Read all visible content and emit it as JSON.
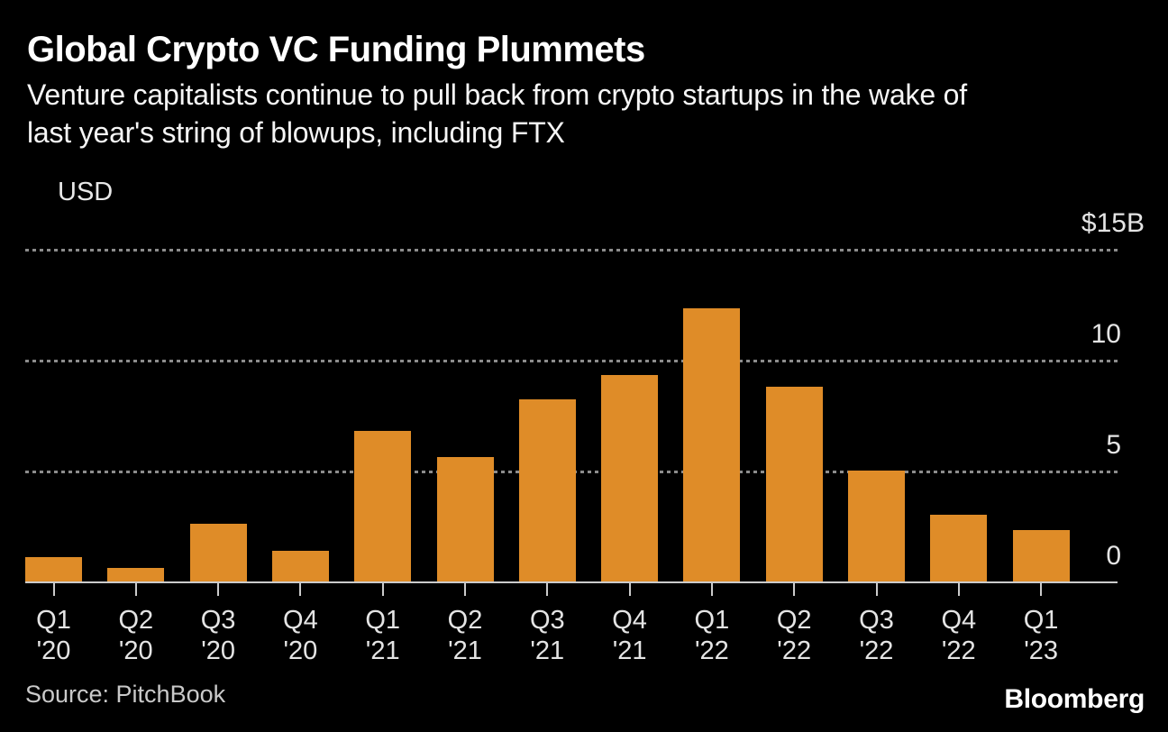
{
  "header": {
    "title": "Global Crypto VC Funding Plummets",
    "subtitle_lines": [
      "Venture capitalists continue to pull back from crypto startups in the wake of",
      "last year's string of blowups, including FTX"
    ]
  },
  "legend": {
    "label": "USD",
    "swatch_color": "#DF8C28"
  },
  "chart_data": {
    "type": "bar",
    "title": "Global Crypto VC Funding Plummets",
    "unit": "USD billions ($B)",
    "categories": [
      "Q1 '20",
      "Q2 '20",
      "Q3 '20",
      "Q4 '20",
      "Q1 '21",
      "Q2 '21",
      "Q3 '21",
      "Q4 '21",
      "Q1 '22",
      "Q2 '22",
      "Q3 '22",
      "Q4 '22",
      "Q1 '23"
    ],
    "series": [
      {
        "name": "USD",
        "values": [
          1.1,
          0.6,
          2.6,
          1.4,
          6.8,
          5.6,
          8.2,
          9.3,
          12.3,
          8.8,
          5.0,
          3.0,
          2.3
        ]
      }
    ],
    "y_ticks": [
      {
        "label": "$15B",
        "value": 15
      },
      {
        "label": "10",
        "value": 10
      },
      {
        "label": "5",
        "value": 5
      },
      {
        "label": "0",
        "value": 0
      }
    ],
    "ylim": [
      0,
      15
    ],
    "grid": "horizontal dashed gridlines at 5, 10, 15; solid zero baseline",
    "legend_position": "top-left",
    "bar_color": "#DF8C28",
    "background_color": "#000000"
  },
  "footer": {
    "source": "Source: PitchBook",
    "logo": "Bloomberg"
  }
}
